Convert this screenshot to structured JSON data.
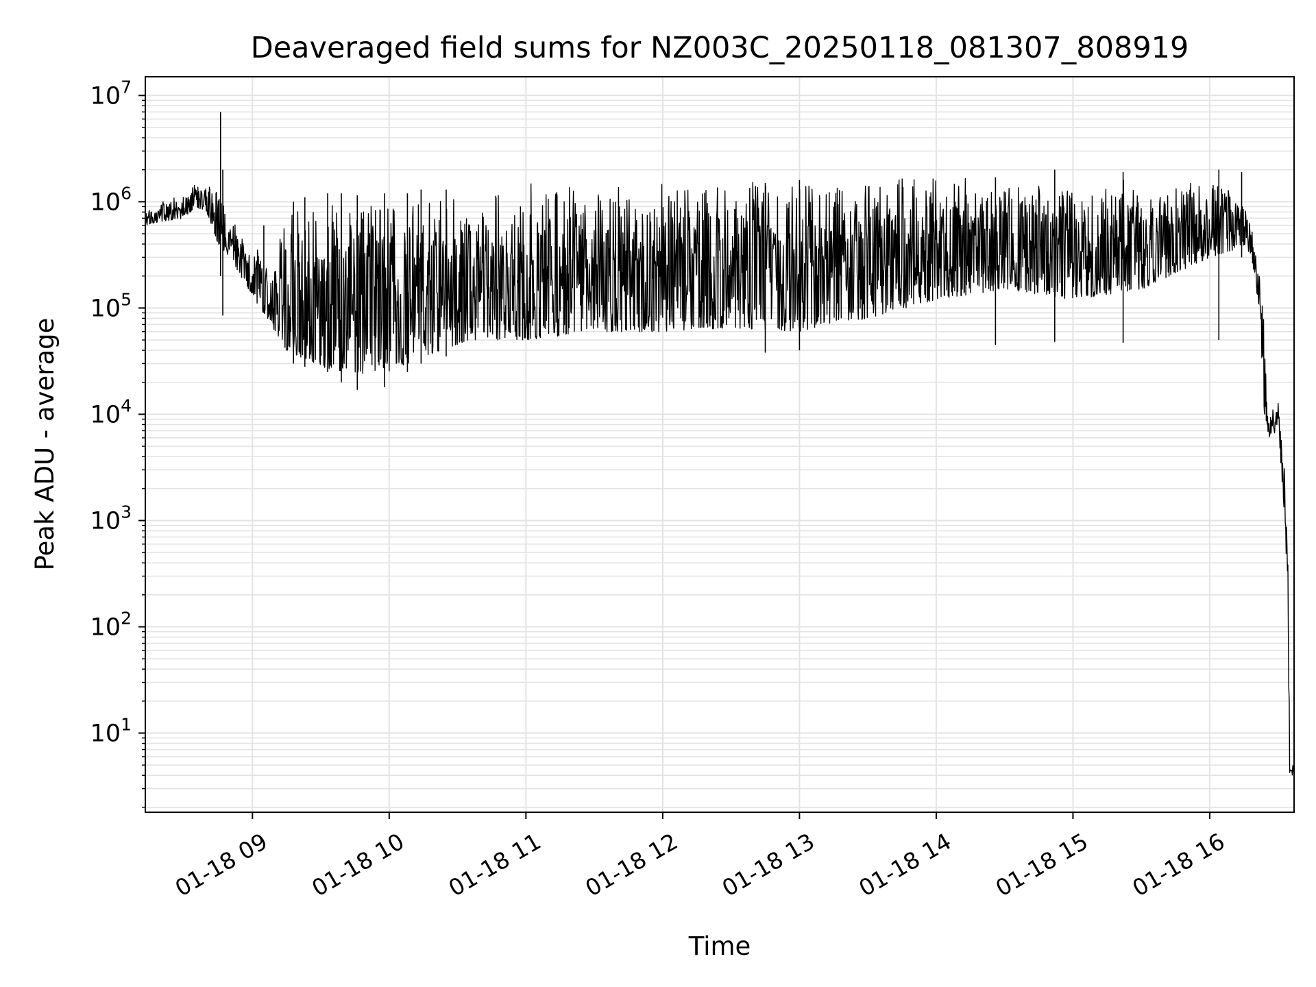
{
  "chart_data": {
    "type": "line",
    "title": "Deaveraged field sums for NZ003C_20250118_081307_808919",
    "xlabel": "Time",
    "ylabel": "Peak ADU - average",
    "yscale": "log",
    "grid": true,
    "legend": "none",
    "xlim": [
      "2025-01-18 08:13",
      "2025-01-18 16:37"
    ],
    "ylim": [
      1.8,
      15000000
    ],
    "x_ticks": [
      {
        "value": "2025-01-18 09:00",
        "label": "01-18 09"
      },
      {
        "value": "2025-01-18 10:00",
        "label": "01-18 10"
      },
      {
        "value": "2025-01-18 11:00",
        "label": "01-18 11"
      },
      {
        "value": "2025-01-18 12:00",
        "label": "01-18 12"
      },
      {
        "value": "2025-01-18 13:00",
        "label": "01-18 13"
      },
      {
        "value": "2025-01-18 14:00",
        "label": "01-18 14"
      },
      {
        "value": "2025-01-18 15:00",
        "label": "01-18 15"
      },
      {
        "value": "2025-01-18 16:00",
        "label": "01-18 16"
      }
    ],
    "y_ticks": [
      {
        "value": 10,
        "base": "10",
        "exp": "1"
      },
      {
        "value": 100,
        "base": "10",
        "exp": "2"
      },
      {
        "value": 1000,
        "base": "10",
        "exp": "3"
      },
      {
        "value": 10000,
        "base": "10",
        "exp": "4"
      },
      {
        "value": 100000,
        "base": "10",
        "exp": "5"
      },
      {
        "value": 1000000,
        "base": "10",
        "exp": "6"
      },
      {
        "value": 10000000,
        "base": "10",
        "exp": "7"
      }
    ],
    "series": [
      {
        "color": "#000000",
        "band_upper": [
          [
            "2025-01-18 08:13",
            800000
          ],
          [
            "2025-01-18 08:20",
            1000000
          ],
          [
            "2025-01-18 08:30",
            1200000
          ],
          [
            "2025-01-18 08:35",
            1500000
          ],
          [
            "2025-01-18 08:40",
            1400000
          ],
          [
            "2025-01-18 08:45",
            1300000
          ],
          [
            "2025-01-18 08:50",
            700000
          ],
          [
            "2025-01-18 09:00",
            400000
          ],
          [
            "2025-01-18 09:10",
            300000
          ],
          [
            "2025-01-18 09:15",
            1000000
          ],
          [
            "2025-01-18 09:30",
            1100000
          ],
          [
            "2025-01-18 09:45",
            1200000
          ],
          [
            "2025-01-18 10:00",
            1200000
          ],
          [
            "2025-01-18 10:15",
            1300000
          ],
          [
            "2025-01-18 10:30",
            1400000
          ],
          [
            "2025-01-18 10:35",
            1500000
          ],
          [
            "2025-01-18 11:00",
            1500000
          ],
          [
            "2025-01-18 11:30",
            1550000
          ],
          [
            "2025-01-18 12:00",
            1550000
          ],
          [
            "2025-01-18 12:30",
            1600000
          ],
          [
            "2025-01-18 13:00",
            1600000
          ],
          [
            "2025-01-18 13:30",
            1600000
          ],
          [
            "2025-01-18 14:00",
            1700000
          ],
          [
            "2025-01-18 14:30",
            1700000
          ],
          [
            "2025-01-18 15:00",
            1700000
          ],
          [
            "2025-01-18 15:30",
            1600000
          ],
          [
            "2025-01-18 16:00",
            1500000
          ],
          [
            "2025-01-18 16:10",
            1500000
          ],
          [
            "2025-01-18 16:16",
            1100000
          ],
          [
            "2025-01-18 16:20",
            400000
          ],
          [
            "2025-01-18 16:22",
            200000
          ],
          [
            "2025-01-18 16:24",
            80000
          ],
          [
            "2025-01-18 16:26",
            12000
          ],
          [
            "2025-01-18 16:30",
            13000
          ],
          [
            "2025-01-18 16:32",
            6000
          ],
          [
            "2025-01-18 16:33",
            2500
          ],
          [
            "2025-01-18 16:34",
            800
          ],
          [
            "2025-01-18 16:35",
            100
          ],
          [
            "2025-01-18 16:35",
            5
          ],
          [
            "2025-01-18 16:37",
            5
          ]
        ],
        "band_lower": [
          [
            "2025-01-18 08:13",
            600000
          ],
          [
            "2025-01-18 08:20",
            650000
          ],
          [
            "2025-01-18 08:30",
            700000
          ],
          [
            "2025-01-18 08:35",
            900000
          ],
          [
            "2025-01-18 08:40",
            800000
          ],
          [
            "2025-01-18 08:45",
            400000
          ],
          [
            "2025-01-18 08:50",
            300000
          ],
          [
            "2025-01-18 09:00",
            130000
          ],
          [
            "2025-01-18 09:10",
            60000
          ],
          [
            "2025-01-18 09:15",
            40000
          ],
          [
            "2025-01-18 09:30",
            28000
          ],
          [
            "2025-01-18 09:45",
            24000
          ],
          [
            "2025-01-18 10:00",
            25000
          ],
          [
            "2025-01-18 10:15",
            35000
          ],
          [
            "2025-01-18 10:30",
            45000
          ],
          [
            "2025-01-18 10:35",
            50000
          ],
          [
            "2025-01-18 11:00",
            50000
          ],
          [
            "2025-01-18 11:30",
            60000
          ],
          [
            "2025-01-18 12:00",
            60000
          ],
          [
            "2025-01-18 12:30",
            65000
          ],
          [
            "2025-01-18 13:00",
            60000
          ],
          [
            "2025-01-18 13:30",
            80000
          ],
          [
            "2025-01-18 14:00",
            120000
          ],
          [
            "2025-01-18 14:30",
            150000
          ],
          [
            "2025-01-18 15:00",
            120000
          ],
          [
            "2025-01-18 15:30",
            150000
          ],
          [
            "2025-01-18 16:00",
            300000
          ],
          [
            "2025-01-18 16:10",
            350000
          ],
          [
            "2025-01-18 16:16",
            400000
          ],
          [
            "2025-01-18 16:20",
            200000
          ],
          [
            "2025-01-18 16:22",
            70000
          ],
          [
            "2025-01-18 16:24",
            10000
          ],
          [
            "2025-01-18 16:26",
            6000
          ],
          [
            "2025-01-18 16:30",
            7000
          ],
          [
            "2025-01-18 16:32",
            2000
          ],
          [
            "2025-01-18 16:33",
            800
          ],
          [
            "2025-01-18 16:34",
            200
          ],
          [
            "2025-01-18 16:35",
            10
          ],
          [
            "2025-01-18 16:35",
            4
          ],
          [
            "2025-01-18 16:37",
            4
          ]
        ],
        "spikes": [
          [
            "2025-01-18 08:46",
            7000000,
            200000
          ],
          [
            "2025-01-18 08:47",
            2000000,
            85000
          ],
          [
            "2025-01-18 09:05",
            600000,
            90000
          ],
          [
            "2025-01-18 09:18",
            1000000,
            30000
          ],
          [
            "2025-01-18 09:23",
            1100000,
            28000
          ],
          [
            "2025-01-18 09:33",
            1200000,
            25000
          ],
          [
            "2025-01-18 09:39",
            1200000,
            20000
          ],
          [
            "2025-01-18 09:46",
            1150000,
            17000
          ],
          [
            "2025-01-18 09:58",
            1200000,
            18000
          ],
          [
            "2025-01-18 10:08",
            1200000,
            25000
          ],
          [
            "2025-01-18 10:14",
            1300000,
            30000
          ],
          [
            "2025-01-18 10:25",
            1300000,
            35000
          ],
          [
            "2025-01-18 12:45",
            1500000,
            38000
          ],
          [
            "2025-01-18 13:00",
            1600000,
            40000
          ],
          [
            "2025-01-18 14:26",
            1700000,
            45000
          ],
          [
            "2025-01-18 14:52",
            2000000,
            48000
          ],
          [
            "2025-01-18 15:22",
            1900000,
            47000
          ],
          [
            "2025-01-18 16:04",
            2000000,
            50000
          ],
          [
            "2025-01-18 16:14",
            1900000,
            300000
          ]
        ]
      }
    ]
  }
}
